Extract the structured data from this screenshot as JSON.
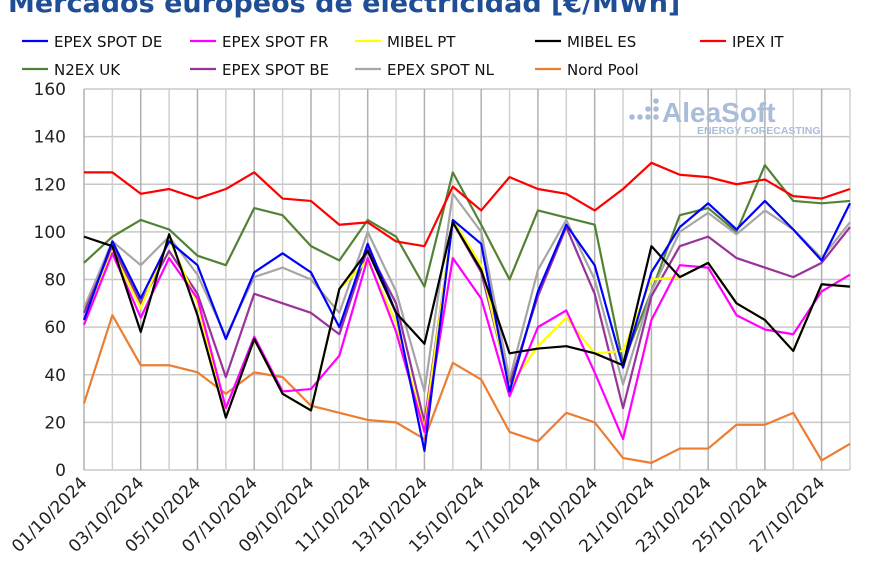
{
  "chart_data": {
    "type": "line",
    "title": "Mercados europeos de electricidad [€/MWh]",
    "xlabel": "",
    "ylabel": "",
    "ylim": [
      0,
      160
    ],
    "yticks": [
      "0",
      "20",
      "40",
      "60",
      "80",
      "100",
      "120",
      "140",
      "160"
    ],
    "grid": true,
    "legend": "top",
    "watermark": "AleaSoft ENERGY FORECASTING",
    "x": [
      "01/10/2024",
      "02/10/2024",
      "03/10/2024",
      "04/10/2024",
      "05/10/2024",
      "06/10/2024",
      "07/10/2024",
      "08/10/2024",
      "09/10/2024",
      "10/10/2024",
      "11/10/2024",
      "12/10/2024",
      "13/10/2024",
      "14/10/2024",
      "15/10/2024",
      "16/10/2024",
      "17/10/2024",
      "18/10/2024",
      "19/10/2024",
      "20/10/2024",
      "21/10/2024",
      "22/10/2024",
      "23/10/2024",
      "24/10/2024",
      "25/10/2024",
      "26/10/2024",
      "27/10/2024",
      "28/10/2024"
    ],
    "xtick_labels": [
      "01/10/2024",
      "03/10/2024",
      "05/10/2024",
      "07/10/2024",
      "09/10/2024",
      "11/10/2024",
      "13/10/2024",
      "15/10/2024",
      "17/10/2024",
      "19/10/2024",
      "21/10/2024",
      "23/10/2024",
      "25/10/2024",
      "27/10/2024"
    ],
    "series": [
      {
        "name": "EPEX SPOT DE",
        "color": "#0000ff",
        "values": [
          63,
          96,
          72,
          96,
          86,
          55,
          83,
          91,
          83,
          60,
          95,
          66,
          8,
          105,
          95,
          33,
          75,
          103,
          86,
          43,
          83,
          102,
          112,
          101,
          113,
          101,
          88,
          112
        ]
      },
      {
        "name": "EPEX SPOT FR",
        "color": "#ff00ff",
        "values": [
          61,
          91,
          64,
          89,
          72,
          26,
          56,
          33,
          34,
          48,
          89,
          58,
          16,
          89,
          72,
          31,
          60,
          67,
          41,
          13,
          63,
          86,
          85,
          65,
          59,
          57,
          75,
          82
        ]
      },
      {
        "name": "MIBEL PT",
        "color": "#ffff00",
        "values": [
          62,
          92,
          68,
          97,
          70,
          22,
          55,
          32,
          25,
          76,
          88,
          62,
          17,
          105,
          86,
          35,
          52,
          64,
          49,
          50,
          80,
          81,
          87,
          70,
          63,
          50,
          78,
          77
        ]
      },
      {
        "name": "MIBEL ES",
        "color": "#000000",
        "values": [
          98,
          94,
          58,
          99,
          65,
          22,
          55,
          32,
          25,
          76,
          92,
          66,
          53,
          104,
          84,
          49,
          51,
          52,
          49,
          44,
          94,
          81,
          87,
          70,
          63,
          50,
          78,
          77
        ]
      },
      {
        "name": "IPEX IT",
        "color": "#ff0000",
        "values": [
          125,
          125,
          116,
          118,
          114,
          118,
          125,
          114,
          113,
          103,
          104,
          96,
          94,
          119,
          109,
          123,
          118,
          116,
          109,
          118,
          129,
          124,
          123,
          120,
          122,
          115,
          114,
          118
        ]
      },
      {
        "name": "N2EX UK",
        "color": "#548235",
        "values": [
          87,
          98,
          105,
          101,
          90,
          86,
          110,
          107,
          94,
          88,
          105,
          98,
          77,
          125,
          103,
          80,
          109,
          106,
          103,
          45,
          75,
          107,
          110,
          100,
          128,
          113,
          112,
          113
        ]
      },
      {
        "name": "EPEX SPOT BE",
        "color": "#993399",
        "values": [
          66,
          94,
          70,
          92,
          74,
          39,
          74,
          70,
          66,
          57,
          93,
          70,
          20,
          104,
          83,
          36,
          73,
          102,
          74,
          26,
          73,
          94,
          98,
          89,
          85,
          81,
          87,
          102
        ]
      },
      {
        "name": "EPEX SPOT NL",
        "color": "#a6a6a6",
        "values": [
          68,
          96,
          86,
          98,
          82,
          56,
          81,
          85,
          80,
          66,
          100,
          75,
          33,
          116,
          100,
          38,
          84,
          105,
          80,
          36,
          75,
          100,
          108,
          99,
          109,
          101,
          89,
          104
        ]
      },
      {
        "name": "Nord Pool",
        "color": "#ed7d31",
        "values": [
          28,
          65,
          44,
          44,
          41,
          32,
          41,
          39,
          27,
          24,
          21,
          20,
          13,
          45,
          38,
          16,
          12,
          24,
          20,
          5,
          3,
          9,
          9,
          19,
          19,
          24,
          4,
          11
        ]
      }
    ]
  }
}
